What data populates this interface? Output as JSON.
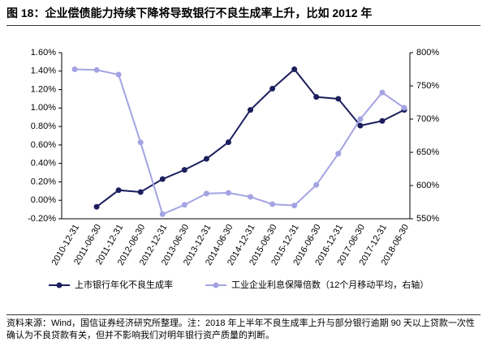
{
  "chart_data": {
    "type": "line",
    "title": "图 18：企业偿债能力持续下降将导致银行不良生成率上升，比如 2012 年",
    "note": "资料来源：Wind，国信证券经济研究所整理。注：2018 年上半年不良生成率上升与部分银行逾期 90 天以上贷款一次性确认为不良贷款有关，但并不影响我们对明年银行资产质量的判断。",
    "categories": [
      "2010-12-31",
      "2011-06-30",
      "2011-12-31",
      "2012-06-30",
      "2012-12-31",
      "2013-06-30",
      "2013-12-31",
      "2014-06-30",
      "2014-12-31",
      "2015-06-30",
      "2015-12-31",
      "2016-06-30",
      "2016-12-31",
      "2017-06-30",
      "2017-12-31",
      "2018-06-30"
    ],
    "series": [
      {
        "name": "上市银行年化不良生成率",
        "color": "#1c1f5e",
        "values": [
          null,
          -0.07,
          0.11,
          0.09,
          0.23,
          0.33,
          0.45,
          0.63,
          0.98,
          1.21,
          1.42,
          1.12,
          1.1,
          0.81,
          0.86,
          0.98
        ]
      },
      {
        "name": "工业企业利息保障倍数（12个月移动平均，右轴）",
        "color": "#a3a3e3",
        "axis": "y2",
        "values": [
          775,
          774,
          767,
          665,
          557,
          571,
          588,
          589,
          583,
          572,
          570,
          601,
          648,
          700,
          740,
          717
        ]
      }
    ],
    "ylim": [
      -0.2,
      1.6
    ],
    "yticks": [
      {
        "value": -0.2,
        "label": "-0.20%"
      },
      {
        "value": 0,
        "label": "0.00%"
      },
      {
        "value": 0.2,
        "label": "0.20%"
      },
      {
        "value": 0.4,
        "label": "0.40%"
      },
      {
        "value": 0.6,
        "label": "0.60%"
      },
      {
        "value": 0.8,
        "label": "0.80%"
      },
      {
        "value": 1.0,
        "label": "1.00%"
      },
      {
        "value": 1.2,
        "label": "1.20%"
      },
      {
        "value": 1.4,
        "label": "1.40%"
      },
      {
        "value": 1.6,
        "label": "1.60%"
      }
    ],
    "y2lim": [
      550,
      800
    ],
    "y2ticks": [
      {
        "value": 550,
        "label": "550%"
      },
      {
        "value": 600,
        "label": "600%"
      },
      {
        "value": 650,
        "label": "650%"
      },
      {
        "value": 700,
        "label": "700%"
      },
      {
        "value": 750,
        "label": "750%"
      },
      {
        "value": 800,
        "label": "800%"
      }
    ],
    "legend": "bottom"
  }
}
